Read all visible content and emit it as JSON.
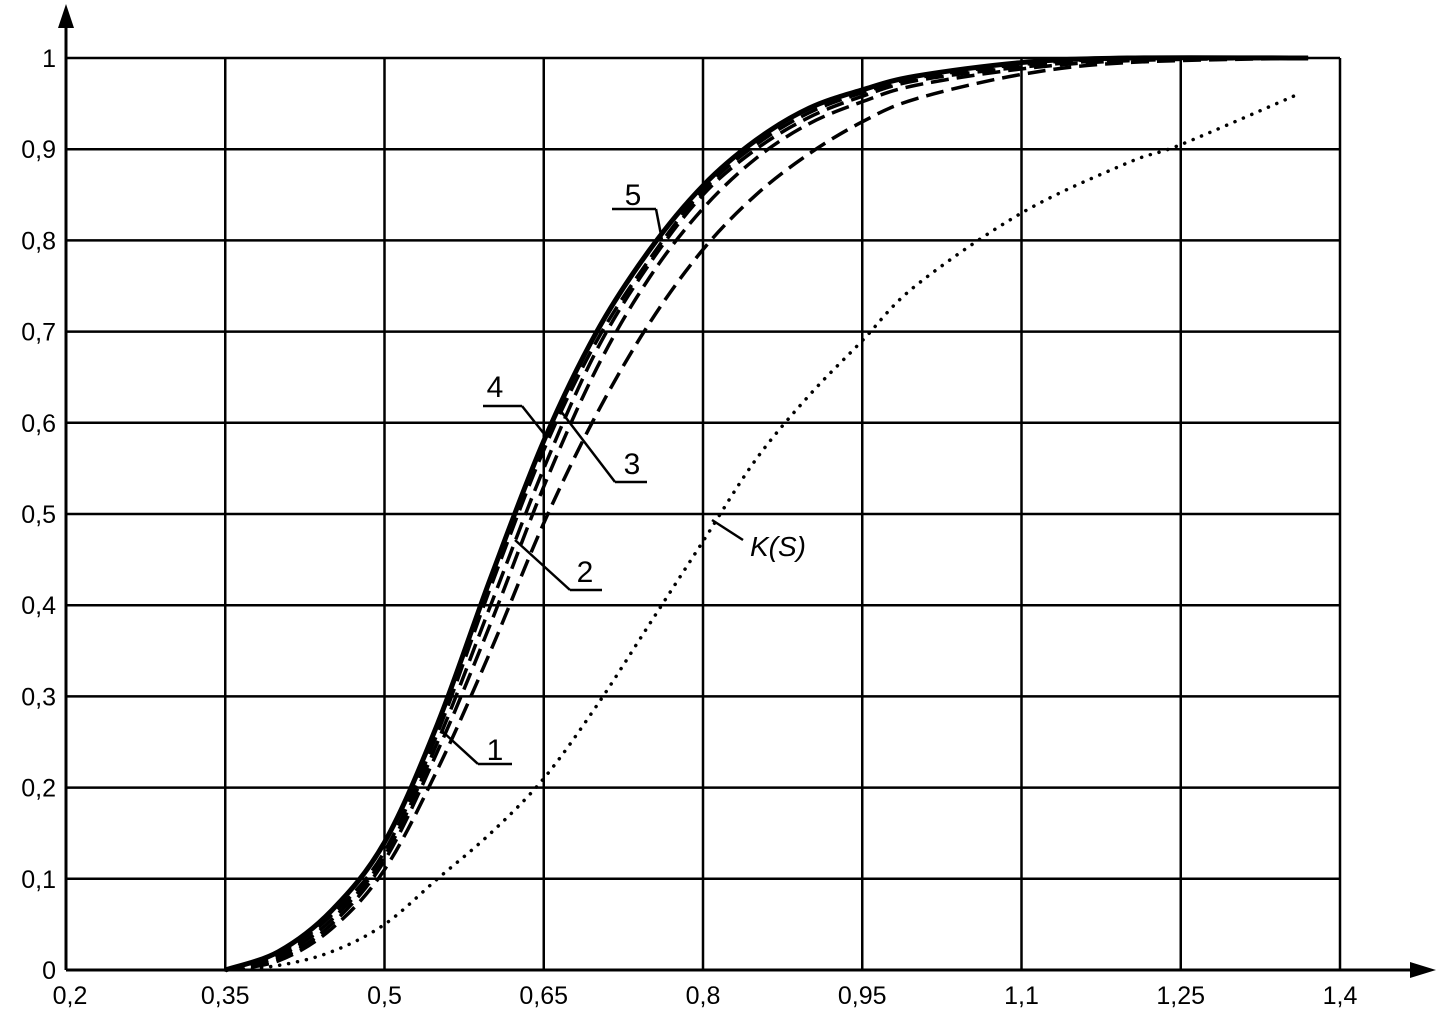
{
  "chart_data": {
    "type": "line",
    "title": "",
    "xlabel": "",
    "ylabel": "",
    "xlim": [
      0.2,
      1.4
    ],
    "ylim": [
      0,
      1
    ],
    "grid": true,
    "x_ticks": [
      0.2,
      0.35,
      0.5,
      0.65,
      0.8,
      0.95,
      1.1,
      1.25,
      1.4
    ],
    "x_tick_labels": [
      "0,2",
      "0,35",
      "0,5",
      "0,65",
      "0,8",
      "0,95",
      "1,1",
      "1,25",
      "1,4"
    ],
    "y_ticks": [
      0,
      0.1,
      0.2,
      0.3,
      0.4,
      0.5,
      0.6,
      0.7,
      0.8,
      0.9,
      1
    ],
    "y_tick_labels": [
      "0",
      "0,1",
      "0,2",
      "0,3",
      "0,4",
      "0,5",
      "0,6",
      "0,7",
      "0,8",
      "0,9",
      "1"
    ],
    "series": [
      {
        "name": "1",
        "style": "dashed",
        "x": [
          0.35,
          0.4,
          0.45,
          0.5,
          0.55,
          0.6,
          0.65,
          0.7,
          0.75,
          0.8,
          0.85,
          0.9,
          0.95,
          1.0,
          1.1,
          1.2,
          1.37
        ],
        "y": [
          0,
          0.01,
          0.045,
          0.11,
          0.22,
          0.35,
          0.49,
          0.61,
          0.71,
          0.79,
          0.85,
          0.895,
          0.93,
          0.955,
          0.982,
          0.995,
          1.0
        ]
      },
      {
        "name": "2",
        "style": "dashed",
        "x": [
          0.35,
          0.4,
          0.45,
          0.5,
          0.55,
          0.6,
          0.65,
          0.7,
          0.75,
          0.8,
          0.85,
          0.9,
          0.95,
          1.0,
          1.1,
          1.2,
          1.37
        ],
        "y": [
          0,
          0.012,
          0.05,
          0.12,
          0.24,
          0.38,
          0.53,
          0.66,
          0.76,
          0.835,
          0.89,
          0.928,
          0.952,
          0.97,
          0.988,
          0.997,
          1.0
        ]
      },
      {
        "name": "3",
        "style": "dashed",
        "x": [
          0.35,
          0.4,
          0.45,
          0.5,
          0.55,
          0.6,
          0.65,
          0.7,
          0.75,
          0.8,
          0.85,
          0.9,
          0.95,
          1.0,
          1.1,
          1.2,
          1.37
        ],
        "y": [
          0,
          0.015,
          0.055,
          0.125,
          0.25,
          0.4,
          0.55,
          0.68,
          0.775,
          0.85,
          0.9,
          0.935,
          0.958,
          0.975,
          0.99,
          0.998,
          1.0
        ]
      },
      {
        "name": "4",
        "style": "dashed",
        "x": [
          0.35,
          0.4,
          0.45,
          0.5,
          0.55,
          0.6,
          0.65,
          0.7,
          0.75,
          0.8,
          0.85,
          0.9,
          0.95,
          1.0,
          1.1,
          1.2,
          1.37
        ],
        "y": [
          0,
          0.018,
          0.06,
          0.13,
          0.26,
          0.42,
          0.57,
          0.69,
          0.78,
          0.855,
          0.905,
          0.94,
          0.962,
          0.978,
          0.993,
          0.999,
          1.0
        ]
      },
      {
        "name": "5",
        "style": "solid",
        "x": [
          0.35,
          0.4,
          0.45,
          0.5,
          0.55,
          0.6,
          0.65,
          0.7,
          0.75,
          0.8,
          0.85,
          0.9,
          0.95,
          1.0,
          1.1,
          1.2,
          1.37
        ],
        "y": [
          0,
          0.02,
          0.065,
          0.14,
          0.27,
          0.43,
          0.58,
          0.7,
          0.79,
          0.86,
          0.91,
          0.945,
          0.965,
          0.98,
          0.995,
          1.0,
          1.0
        ]
      },
      {
        "name": "K(S)",
        "style": "dotted",
        "x": [
          0.35,
          0.4,
          0.45,
          0.5,
          0.55,
          0.6,
          0.65,
          0.7,
          0.75,
          0.8,
          0.85,
          0.9,
          0.95,
          1.0,
          1.1,
          1.2,
          1.25,
          1.36
        ],
        "y": [
          0,
          0.005,
          0.02,
          0.05,
          0.1,
          0.15,
          0.21,
          0.29,
          0.38,
          0.47,
          0.56,
          0.63,
          0.69,
          0.75,
          0.83,
          0.885,
          0.905,
          0.96
        ]
      }
    ],
    "annotations": [
      "1",
      "2",
      "3",
      "4",
      "5",
      "K(S)"
    ]
  }
}
